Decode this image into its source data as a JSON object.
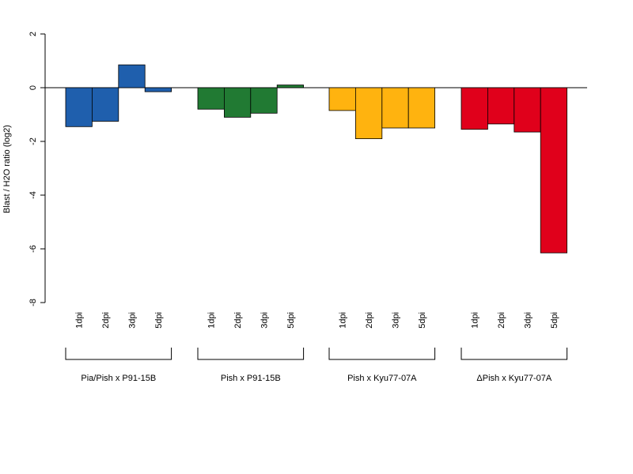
{
  "chart_data": {
    "type": "bar",
    "title": "",
    "xlabel": "",
    "ylabel": "Blast / H2O ratio (log2)",
    "ylim": [
      -8,
      2
    ],
    "yticks": [
      -8,
      -6,
      -4,
      -2,
      0,
      2
    ],
    "grid": false,
    "legend": "none",
    "categories": [
      "1dpi",
      "2dpi",
      "3dpi",
      "5dpi"
    ],
    "series": [
      {
        "name": "Pia/Pish x P91-15B",
        "color": "#1f5fad",
        "values": [
          -1.45,
          -1.25,
          0.85,
          -0.15
        ]
      },
      {
        "name": "Pish x P91-15B",
        "color": "#217a33",
        "values": [
          -0.8,
          -1.1,
          -0.95,
          0.1
        ]
      },
      {
        "name": "Pish x Kyu77-07A",
        "color": "#ffb30f",
        "values": [
          -0.85,
          -1.9,
          -1.5,
          -1.5
        ]
      },
      {
        "name": "ΔPish x Kyu77-07A",
        "color": "#e0001b",
        "values": [
          -1.55,
          -1.35,
          -1.65,
          -6.15
        ]
      }
    ]
  }
}
